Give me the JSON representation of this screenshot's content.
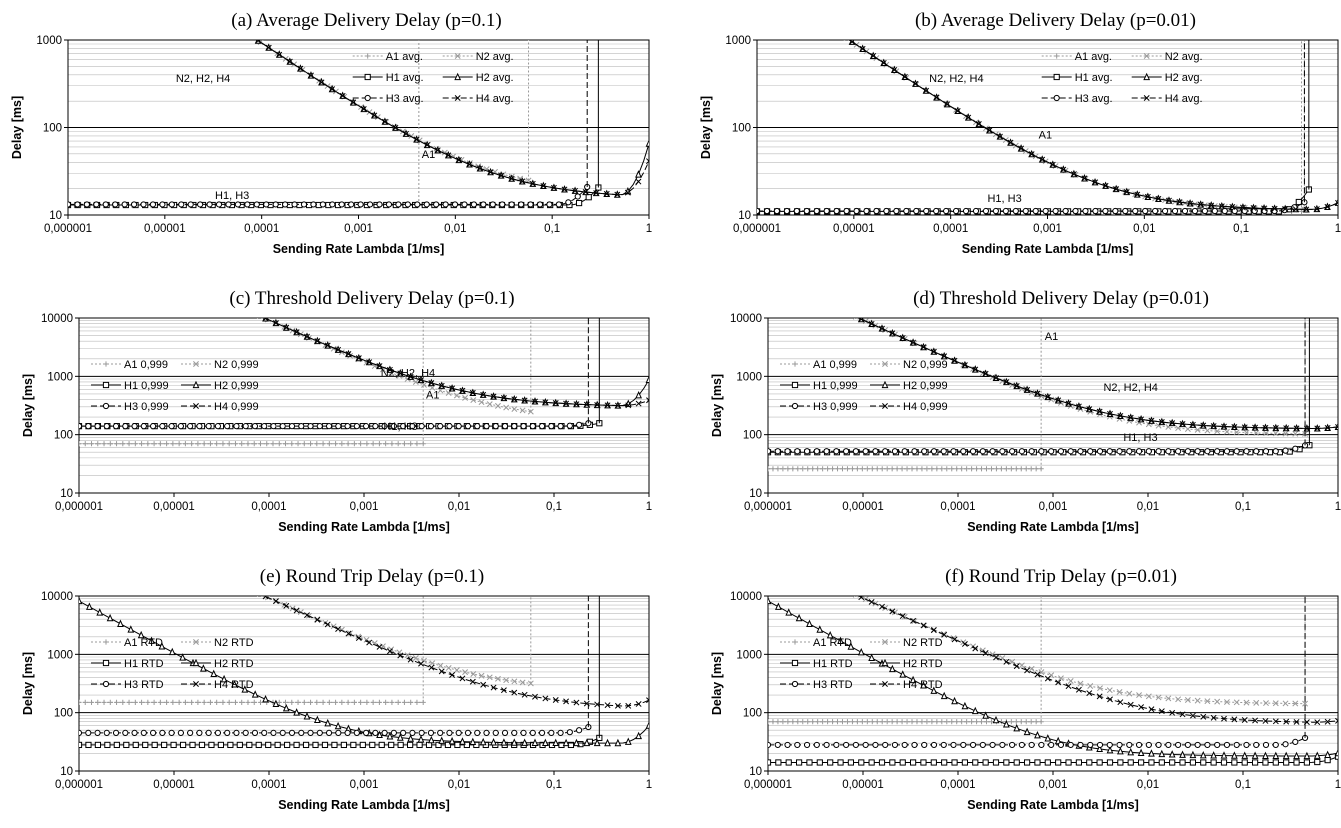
{
  "chart_data": [
    {
      "type": "line",
      "title": "(a) Average Delivery Delay (p=0.1)",
      "xlabel": "Sending Rate Lambda [1/ms]",
      "ylabel": "Delay [ms]",
      "x_scale": "log",
      "y_scale": "log",
      "xlim": [
        1e-06,
        1
      ],
      "ylim": [
        10,
        1000
      ],
      "x_ticks": [
        "0,000001",
        "0,00001",
        "0,0001",
        "0,001",
        "0,01",
        "0,1",
        "1"
      ],
      "y_ticks": [
        "10",
        "100",
        "1000"
      ],
      "legend_columns": 2,
      "series": [
        {
          "name": "A1 avg.",
          "base": 13,
          "end": 0.0042,
          "slope": 0,
          "color": "#999999",
          "dash": "2,2",
          "marker": "plus"
        },
        {
          "name": "N2 avg.",
          "base": 17,
          "end": 0.057,
          "slope": 0.75,
          "color": "#999999",
          "dash": "2,2",
          "marker": "x"
        },
        {
          "name": "H1 avg.",
          "base": 13,
          "end": 0.3,
          "slope": 0,
          "color": "#000000",
          "dash": "",
          "marker": "square",
          "rise": 0.2
        },
        {
          "name": "H2 avg.",
          "base": 15.5,
          "end": 1,
          "slope": 0.75,
          "color": "#000000",
          "dash": "",
          "marker": "triangle",
          "rise": 0.6
        },
        {
          "name": "H3 avg.",
          "base": 13.2,
          "end": 0.23,
          "slope": 0,
          "color": "#000000",
          "dash": "6,3",
          "marker": "circle",
          "rise": 0.2
        },
        {
          "name": "H4 avg.",
          "base": 15.5,
          "end": 1,
          "slope": 0.75,
          "color": "#000000",
          "dash": "6,3",
          "marker": "x",
          "rise": 0.4
        }
      ],
      "annotations": [
        {
          "text": "N2, H2, H4",
          "x": 1.3e-05,
          "y": 330
        },
        {
          "text": "A1",
          "x": 0.0045,
          "y": 45
        },
        {
          "text": "H1, H3",
          "x": 3.3e-05,
          "y": 15.2
        }
      ]
    },
    {
      "type": "line",
      "title": "(b) Average Delivery Delay (p=0.01)",
      "xlabel": "Sending Rate Lambda [1/ms]",
      "ylabel": "Delay [ms]",
      "x_scale": "log",
      "y_scale": "log",
      "xlim": [
        1e-06,
        1
      ],
      "ylim": [
        10,
        1000
      ],
      "x_ticks": [
        "0,000001",
        "0,00001",
        "0,0001",
        "0,001",
        "0,01",
        "0,1",
        "1"
      ],
      "y_ticks": [
        "10",
        "100",
        "1000"
      ],
      "legend_columns": 2,
      "series": [
        {
          "name": "A1 avg.",
          "base": 11,
          "end": 0.42,
          "slope": 0,
          "color": "#999999",
          "dash": "2,2",
          "marker": "plus"
        },
        {
          "name": "N2 avg.",
          "base": 11.2,
          "end": 0.45,
          "slope": 0.75,
          "color": "#999999",
          "dash": "2,2",
          "marker": "x"
        },
        {
          "name": "H1 avg.",
          "base": 11,
          "end": 0.5,
          "slope": 0,
          "color": "#000000",
          "dash": "",
          "marker": "square",
          "rise": 0.25
        },
        {
          "name": "H2 avg.",
          "base": 11.3,
          "end": 1,
          "slope": 0.75,
          "color": "#000000",
          "dash": "",
          "marker": "triangle",
          "rise": 0.08
        },
        {
          "name": "H3 avg.",
          "base": 11.1,
          "end": 0.45,
          "slope": 0,
          "color": "#000000",
          "dash": "6,3",
          "marker": "circle",
          "rise": 0.1
        },
        {
          "name": "H4 avg.",
          "base": 11.3,
          "end": 1,
          "slope": 0.75,
          "color": "#000000",
          "dash": "6,3",
          "marker": "x",
          "rise": 0.08
        }
      ],
      "annotations": [
        {
          "text": "N2, H2, H4",
          "x": 6e-05,
          "y": 330
        },
        {
          "text": "A1",
          "x": 0.00081,
          "y": 75
        },
        {
          "text": "H1, H3",
          "x": 0.00024,
          "y": 14
        }
      ]
    },
    {
      "type": "line",
      "title": "(c) Threshold Delivery Delay (p=0.1)",
      "xlabel": "Sending Rate Lambda [1/ms]",
      "ylabel": "Delay [ms]",
      "x_scale": "log",
      "y_scale": "log",
      "xlim": [
        1e-06,
        1
      ],
      "ylim": [
        10,
        10000
      ],
      "x_ticks": [
        "0,000001",
        "0,00001",
        "0,0001",
        "0,001",
        "0,01",
        "0,1",
        "1"
      ],
      "y_ticks": [
        "10",
        "100",
        "1000",
        "10000"
      ],
      "legend_columns": 2,
      "series": [
        {
          "name": "A1 0,999",
          "base": 70,
          "end": 0.0042,
          "slope": 0,
          "color": "#999999",
          "dash": "2,2",
          "marker": "plus"
        },
        {
          "name": "N2 0,999",
          "base": 170,
          "end": 0.057,
          "slope": 0.75,
          "color": "#999999",
          "dash": "2,2",
          "marker": "x"
        },
        {
          "name": "H1 0,999",
          "base": 140,
          "end": 0.3,
          "slope": 0,
          "color": "#000000",
          "dash": "",
          "marker": "square",
          "rise": 0.05
        },
        {
          "name": "H2 0,999",
          "base": 300,
          "end": 1,
          "slope": 0.75,
          "color": "#000000",
          "dash": "",
          "marker": "triangle",
          "rise": 0.45
        },
        {
          "name": "H3 0,999",
          "base": 140,
          "end": 0.23,
          "slope": 0,
          "color": "#000000",
          "dash": "6,3",
          "marker": "circle",
          "rise": 0.05
        },
        {
          "name": "H4 0,999",
          "base": 300,
          "end": 1,
          "slope": 0.75,
          "color": "#000000",
          "dash": "6,3",
          "marker": "x",
          "rise": 0.1
        }
      ],
      "annotations": [
        {
          "text": "N2, H2, H4",
          "x": 0.0015,
          "y": 1000
        },
        {
          "text": "A1",
          "x": 0.0045,
          "y": 420
        },
        {
          "text": "H1, H3",
          "x": 0.0016,
          "y": 120
        }
      ]
    },
    {
      "type": "line",
      "title": "(d) Threshold Delivery Delay (p=0.01)",
      "xlabel": "Sending Rate Lambda [1/ms]",
      "ylabel": "Delay [ms]",
      "x_scale": "log",
      "y_scale": "log",
      "xlim": [
        1e-06,
        1
      ],
      "ylim": [
        10,
        10000
      ],
      "x_ticks": [
        "0,000001",
        "0,00001",
        "0,0001",
        "0,001",
        "0,01",
        "0,1",
        "1"
      ],
      "y_ticks": [
        "10",
        "100",
        "1000",
        "10000"
      ],
      "legend_columns": 2,
      "series": [
        {
          "name": "A1 0,999",
          "base": 26,
          "end": 0.00075,
          "slope": 0,
          "color": "#999999",
          "dash": "2,2",
          "marker": "plus"
        },
        {
          "name": "N2 0,999",
          "base": 100,
          "end": 0.45,
          "slope": 0.75,
          "color": "#999999",
          "dash": "2,2",
          "marker": "x"
        },
        {
          "name": "H1 0,999",
          "base": 50,
          "end": 0.5,
          "slope": 0,
          "color": "#000000",
          "dash": "",
          "marker": "square",
          "rise": 0.12
        },
        {
          "name": "H2 0,999",
          "base": 125,
          "end": 1,
          "slope": 0.75,
          "color": "#000000",
          "dash": "",
          "marker": "triangle",
          "rise": 0.03
        },
        {
          "name": "H3 0,999",
          "base": 52,
          "end": 0.45,
          "slope": 0,
          "color": "#000000",
          "dash": "6,3",
          "marker": "circle",
          "rise": 0.1
        },
        {
          "name": "H4 0,999",
          "base": 125,
          "end": 1,
          "slope": 0.75,
          "color": "#000000",
          "dash": "6,3",
          "marker": "x",
          "rise": 0.03
        }
      ],
      "annotations": [
        {
          "text": "A1",
          "x": 0.00082,
          "y": 4200
        },
        {
          "text": "N2, H2, H4",
          "x": 0.0034,
          "y": 560
        },
        {
          "text": "H1, H3",
          "x": 0.0055,
          "y": 78
        }
      ]
    },
    {
      "type": "line",
      "title": "(e) Round Trip Delay (p=0.1)",
      "xlabel": "Sending Rate Lambda [1/ms]",
      "ylabel": "Delay [ms]",
      "x_scale": "log",
      "y_scale": "log",
      "xlim": [
        1e-06,
        1
      ],
      "ylim": [
        10,
        10000
      ],
      "x_ticks": [
        "0,000001",
        "0,00001",
        "0,0001",
        "0,001",
        "0,01",
        "0,1",
        "1"
      ],
      "y_ticks": [
        "10",
        "100",
        "1000",
        "10000"
      ],
      "legend_columns": 2,
      "series": [
        {
          "name": "A1 RTD",
          "base": 150,
          "end": 0.0042,
          "slope": 0,
          "color": "#999999",
          "dash": "2,2",
          "marker": "plus"
        },
        {
          "name": "N2 RTD",
          "base": 240,
          "end": 0.057,
          "slope": 0.75,
          "color": "#999999",
          "dash": "2,2",
          "marker": "x"
        },
        {
          "name": "H1 RTD",
          "base": 28,
          "end": 0.3,
          "slope": 0,
          "color": "#000000",
          "dash": "",
          "marker": "square",
          "rise": 0.12
        },
        {
          "name": "H2 RTD",
          "base": 30,
          "end": 1,
          "slope": 0.9,
          "color": "#000000",
          "dash": "",
          "marker": "triangle",
          "rise": 0.3
        },
        {
          "name": "H3 RTD",
          "base": 45,
          "end": 0.23,
          "slope": 0,
          "color": "#000000",
          "dash": "6,3",
          "marker": "circle",
          "rise": 0.1
        },
        {
          "name": "H4 RTD",
          "base": 115,
          "end": 1,
          "slope": 0.75,
          "color": "#000000",
          "dash": "6,3",
          "marker": "x",
          "rise": 0.12
        }
      ],
      "annotations": []
    },
    {
      "type": "line",
      "title": "(f) Round Trip Delay (p=0.01)",
      "xlabel": "Sending Rate Lambda [1/ms]",
      "ylabel": "Delay [ms]",
      "x_scale": "log",
      "y_scale": "log",
      "xlim": [
        1e-06,
        1
      ],
      "ylim": [
        10,
        10000
      ],
      "x_ticks": [
        "0,000001",
        "0,00001",
        "0,0001",
        "0,001",
        "0,01",
        "0,1",
        "1"
      ],
      "y_ticks": [
        "10",
        "100",
        "1000",
        "10000"
      ],
      "legend_columns": 2,
      "series": [
        {
          "name": "A1 RTD",
          "base": 70,
          "end": 0.00075,
          "slope": 0,
          "color": "#999999",
          "dash": "2,2",
          "marker": "plus"
        },
        {
          "name": "N2 RTD",
          "base": 140,
          "end": 0.45,
          "slope": 0.75,
          "color": "#999999",
          "dash": "2,2",
          "marker": "x"
        },
        {
          "name": "H1 RTD",
          "base": 14,
          "end": 1,
          "slope": 0,
          "color": "#000000",
          "dash": "",
          "marker": "square",
          "rise": 0.1
        },
        {
          "name": "H2 RTD",
          "base": 18,
          "end": 1,
          "slope": 0.9,
          "color": "#000000",
          "dash": "",
          "marker": "triangle",
          "rise": 0.05
        },
        {
          "name": "H3 RTD",
          "base": 28,
          "end": 0.45,
          "slope": 0,
          "color": "#000000",
          "dash": "6,3",
          "marker": "circle",
          "rise": 0.12
        },
        {
          "name": "H4 RTD",
          "base": 66,
          "end": 1,
          "slope": 0.75,
          "color": "#000000",
          "dash": "6,3",
          "marker": "x",
          "rise": 0.03
        }
      ],
      "annotations": []
    }
  ]
}
